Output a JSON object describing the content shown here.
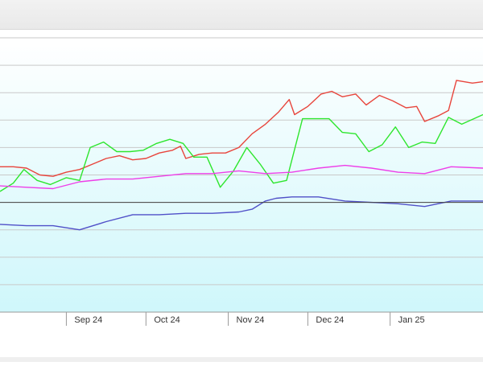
{
  "chart_data": {
    "type": "line",
    "x_type": "date",
    "xlim": [
      "2024-08-07",
      "2025-02-05"
    ],
    "ylim": [
      0,
      10
    ],
    "grid": true,
    "baseline": 4,
    "x_ticks": [
      {
        "date": "2024-09-01",
        "label": "Sep 24"
      },
      {
        "date": "2024-10-01",
        "label": "Oct 24"
      },
      {
        "date": "2024-11-01",
        "label": "Nov 24"
      },
      {
        "date": "2024-12-01",
        "label": "Dec 24"
      },
      {
        "date": "2025-01-01",
        "label": "Jan 25"
      }
    ],
    "series": [
      {
        "color": "#e8453c",
        "points": [
          [
            "2024-08-07",
            5.3
          ],
          [
            "2024-08-12",
            5.3
          ],
          [
            "2024-08-17",
            5.25
          ],
          [
            "2024-08-22",
            5.0
          ],
          [
            "2024-08-27",
            4.95
          ],
          [
            "2024-09-01",
            5.1
          ],
          [
            "2024-09-06",
            5.2
          ],
          [
            "2024-09-11",
            5.4
          ],
          [
            "2024-09-16",
            5.6
          ],
          [
            "2024-09-21",
            5.7
          ],
          [
            "2024-09-26",
            5.55
          ],
          [
            "2024-10-01",
            5.6
          ],
          [
            "2024-10-06",
            5.8
          ],
          [
            "2024-10-11",
            5.9
          ],
          [
            "2024-10-14",
            6.05
          ],
          [
            "2024-10-16",
            5.6
          ],
          [
            "2024-10-21",
            5.75
          ],
          [
            "2024-10-26",
            5.8
          ],
          [
            "2024-10-31",
            5.8
          ],
          [
            "2024-11-05",
            6.0
          ],
          [
            "2024-11-10",
            6.5
          ],
          [
            "2024-11-15",
            6.85
          ],
          [
            "2024-11-20",
            7.3
          ],
          [
            "2024-11-24",
            7.75
          ],
          [
            "2024-11-26",
            7.2
          ],
          [
            "2024-12-01",
            7.5
          ],
          [
            "2024-12-06",
            7.95
          ],
          [
            "2024-12-10",
            8.05
          ],
          [
            "2024-12-14",
            7.85
          ],
          [
            "2024-12-19",
            7.95
          ],
          [
            "2024-12-23",
            7.55
          ],
          [
            "2024-12-28",
            7.9
          ],
          [
            "2025-01-02",
            7.7
          ],
          [
            "2025-01-07",
            7.45
          ],
          [
            "2025-01-11",
            7.5
          ],
          [
            "2025-01-14",
            6.95
          ],
          [
            "2025-01-19",
            7.15
          ],
          [
            "2025-01-23",
            7.35
          ],
          [
            "2025-01-26",
            8.45
          ],
          [
            "2025-02-01",
            8.35
          ],
          [
            "2025-02-05",
            8.4
          ]
        ]
      },
      {
        "color": "#2ee62e",
        "points": [
          [
            "2024-08-07",
            4.4
          ],
          [
            "2024-08-12",
            4.7
          ],
          [
            "2024-08-16",
            5.2
          ],
          [
            "2024-08-21",
            4.8
          ],
          [
            "2024-08-26",
            4.65
          ],
          [
            "2024-09-01",
            4.9
          ],
          [
            "2024-09-06",
            4.8
          ],
          [
            "2024-09-10",
            6.0
          ],
          [
            "2024-09-15",
            6.2
          ],
          [
            "2024-09-20",
            5.85
          ],
          [
            "2024-09-25",
            5.85
          ],
          [
            "2024-09-30",
            5.9
          ],
          [
            "2024-10-05",
            6.15
          ],
          [
            "2024-10-10",
            6.3
          ],
          [
            "2024-10-15",
            6.15
          ],
          [
            "2024-10-19",
            5.65
          ],
          [
            "2024-10-24",
            5.65
          ],
          [
            "2024-10-29",
            4.55
          ],
          [
            "2024-11-03",
            5.15
          ],
          [
            "2024-11-08",
            6.0
          ],
          [
            "2024-11-13",
            5.4
          ],
          [
            "2024-11-18",
            4.7
          ],
          [
            "2024-11-23",
            4.8
          ],
          [
            "2024-11-29",
            7.05
          ],
          [
            "2024-12-04",
            7.05
          ],
          [
            "2024-12-09",
            7.05
          ],
          [
            "2024-12-14",
            6.55
          ],
          [
            "2024-12-19",
            6.5
          ],
          [
            "2024-12-24",
            5.85
          ],
          [
            "2024-12-29",
            6.1
          ],
          [
            "2025-01-03",
            6.75
          ],
          [
            "2025-01-08",
            6.0
          ],
          [
            "2025-01-13",
            6.2
          ],
          [
            "2025-01-18",
            6.15
          ],
          [
            "2025-01-23",
            7.1
          ],
          [
            "2025-01-28",
            6.85
          ],
          [
            "2025-02-05",
            7.2
          ]
        ]
      },
      {
        "color": "#ee3ee8",
        "points": [
          [
            "2024-08-07",
            4.6
          ],
          [
            "2024-08-17",
            4.55
          ],
          [
            "2024-08-27",
            4.5
          ],
          [
            "2024-09-06",
            4.75
          ],
          [
            "2024-09-16",
            4.85
          ],
          [
            "2024-09-26",
            4.85
          ],
          [
            "2024-10-06",
            4.95
          ],
          [
            "2024-10-16",
            5.05
          ],
          [
            "2024-10-26",
            5.05
          ],
          [
            "2024-11-05",
            5.15
          ],
          [
            "2024-11-15",
            5.05
          ],
          [
            "2024-11-25",
            5.1
          ],
          [
            "2024-12-05",
            5.25
          ],
          [
            "2024-12-15",
            5.35
          ],
          [
            "2024-12-25",
            5.25
          ],
          [
            "2025-01-04",
            5.1
          ],
          [
            "2025-01-14",
            5.05
          ],
          [
            "2025-01-24",
            5.3
          ],
          [
            "2025-02-05",
            5.25
          ]
        ]
      },
      {
        "color": "#5050c8",
        "points": [
          [
            "2024-08-07",
            3.2
          ],
          [
            "2024-08-17",
            3.15
          ],
          [
            "2024-08-27",
            3.15
          ],
          [
            "2024-09-06",
            3.0
          ],
          [
            "2024-09-16",
            3.3
          ],
          [
            "2024-09-26",
            3.55
          ],
          [
            "2024-10-06",
            3.55
          ],
          [
            "2024-10-16",
            3.6
          ],
          [
            "2024-10-26",
            3.6
          ],
          [
            "2024-11-05",
            3.65
          ],
          [
            "2024-11-10",
            3.75
          ],
          [
            "2024-11-15",
            4.05
          ],
          [
            "2024-11-19",
            4.15
          ],
          [
            "2024-11-25",
            4.2
          ],
          [
            "2024-12-05",
            4.2
          ],
          [
            "2024-12-15",
            4.05
          ],
          [
            "2024-12-25",
            4.0
          ],
          [
            "2025-01-04",
            3.95
          ],
          [
            "2025-01-14",
            3.85
          ],
          [
            "2025-01-24",
            4.05
          ],
          [
            "2025-02-05",
            4.05
          ]
        ]
      }
    ]
  }
}
